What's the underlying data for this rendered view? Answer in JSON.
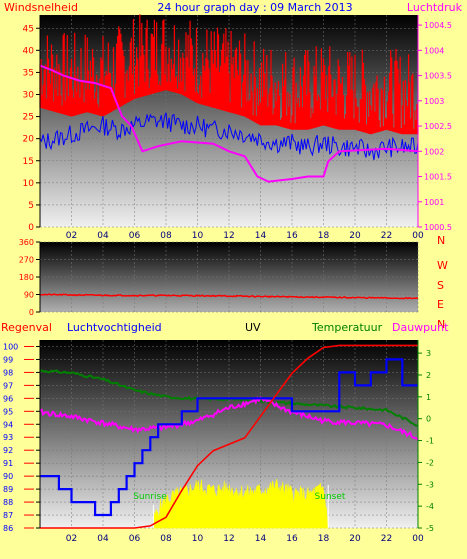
{
  "colors": {
    "background": "#ffff99",
    "wind": "#ff0000",
    "gust": "#0000ff",
    "pressure": "#ff00ff",
    "direction": "#ff0000",
    "rain": "#ff0000",
    "humidity": "#0000ff",
    "uv": "#ffff00",
    "temperature": "#008000",
    "dewpoint": "#ff00ff",
    "sun_labels": "#00cc00"
  },
  "chart_data": [
    {
      "type": "line",
      "title": "24 hour graph day : 09 March 2013",
      "left_label": "Windsnelheid",
      "right_label": "Luchtdruk",
      "x_ticks": [
        "02",
        "04",
        "06",
        "08",
        "10",
        "12",
        "14",
        "16",
        "18",
        "20",
        "22",
        "00"
      ],
      "y_ticks_left": [
        "0",
        "5",
        "10",
        "15",
        "20",
        "25",
        "30",
        "35",
        "40",
        "45"
      ],
      "y_ticks_right": [
        "1000.5",
        "1001",
        "1001.5",
        "1002",
        "1002.5",
        "1003",
        "1003.5",
        "1004",
        "1004.5"
      ],
      "xlim": [
        0,
        24
      ],
      "ylim_left": [
        0,
        48
      ],
      "ylim_right": [
        1000.5,
        1004.7
      ],
      "series": [
        {
          "name": "Windsnelheid",
          "axis": "left",
          "x": [
            0,
            1,
            2,
            3,
            4,
            5,
            6,
            7,
            8,
            9,
            10,
            11,
            12,
            13,
            14,
            15,
            16,
            17,
            18,
            19,
            20,
            21,
            22,
            23,
            24
          ],
          "y": [
            33,
            32,
            31,
            32,
            31,
            33,
            35,
            36,
            37,
            36,
            34,
            33,
            32,
            31,
            29,
            29,
            28,
            28,
            29,
            28,
            28,
            27,
            28,
            27,
            27
          ]
        },
        {
          "name": "Windstoten",
          "axis": "left",
          "x": [
            0,
            1,
            2,
            3,
            4,
            5,
            6,
            7,
            8,
            9,
            10,
            11,
            12,
            13,
            14,
            15,
            16,
            17,
            18,
            19,
            20,
            21,
            22,
            23,
            24
          ],
          "y": [
            19,
            20,
            21,
            22,
            23,
            22,
            23,
            24,
            24,
            23,
            23,
            22,
            22,
            21,
            20,
            19,
            19,
            18,
            19,
            18,
            18,
            17,
            18,
            18,
            18
          ]
        },
        {
          "name": "Luchtdruk",
          "axis": "right",
          "x": [
            0,
            0.8,
            1.5,
            2.5,
            3.5,
            4.5,
            5.2,
            5.8,
            6.5,
            7.5,
            9,
            11,
            12,
            13,
            13.8,
            14.5,
            16,
            17,
            18,
            18.3,
            19,
            22,
            24
          ],
          "y": [
            1003.7,
            1003.6,
            1003.5,
            1003.4,
            1003.35,
            1003.25,
            1002.7,
            1002.5,
            1002.0,
            1002.1,
            1002.2,
            1002.15,
            1002.0,
            1001.9,
            1001.5,
            1001.4,
            1001.45,
            1001.5,
            1001.5,
            1001.8,
            1002.0,
            1002.05,
            1002.0
          ]
        }
      ]
    },
    {
      "type": "line",
      "y_ticks_left": [
        "0",
        "90",
        "180",
        "270",
        "360"
      ],
      "compass_labels": [
        "N",
        "W",
        "S",
        "E",
        "N"
      ],
      "xlim": [
        0,
        24
      ],
      "ylim": [
        0,
        360
      ],
      "series": [
        {
          "name": "Windrichting",
          "x": [
            0,
            2,
            4,
            6,
            8,
            10,
            12,
            14,
            16,
            18,
            20,
            22,
            24
          ],
          "y": [
            90,
            88,
            86,
            85,
            85,
            84,
            82,
            80,
            78,
            76,
            74,
            72,
            70
          ]
        }
      ]
    },
    {
      "type": "line",
      "labels": [
        "Regenval",
        "Luchtvochtigheid",
        "UV",
        "Temperatuur",
        "Dauwpunt"
      ],
      "sun_labels": [
        "Sunrise",
        "Sunset"
      ],
      "sunrise_hour": 7.2,
      "sunset_hour": 18.3,
      "x_ticks": [
        "02",
        "04",
        "06",
        "08",
        "10",
        "12",
        "14",
        "16",
        "18",
        "20",
        "22",
        "00"
      ],
      "y_ticks_humidity": [
        "86",
        "87",
        "88",
        "89",
        "90",
        "91",
        "92",
        "93",
        "94",
        "95",
        "96",
        "97",
        "98",
        "99",
        "100"
      ],
      "y_ticks_temperature": [
        "-5",
        "-4",
        "-3",
        "-2",
        "-1",
        "0",
        "1",
        "2",
        "3"
      ],
      "xlim": [
        0,
        24
      ],
      "ylim_humidity": [
        86,
        100.5
      ],
      "ylim_temperature": [
        -5,
        3.6
      ],
      "series": [
        {
          "name": "Luchtvochtigheid",
          "axis": "humidity",
          "step": true,
          "x": [
            0,
            1.2,
            2,
            3,
            3.5,
            4,
            4.5,
            5,
            5.5,
            6,
            6.5,
            7,
            7.5,
            8,
            8.5,
            9,
            9.5,
            10,
            11,
            12,
            13,
            14,
            16,
            18,
            19,
            20,
            21,
            22,
            23,
            24
          ],
          "y": [
            90,
            89,
            88,
            88,
            87,
            87,
            88,
            89,
            90,
            91,
            92,
            93,
            94,
            94,
            94,
            95,
            95,
            96,
            96,
            96,
            96,
            96,
            95,
            95,
            98,
            97,
            98,
            99,
            97,
            97
          ]
        },
        {
          "name": "Temperatuur",
          "axis": "temperature",
          "x": [
            0,
            2,
            4,
            6,
            8,
            10,
            12,
            14,
            16,
            18,
            20,
            22,
            24
          ],
          "y": [
            2.2,
            2.1,
            1.8,
            1.3,
            1.0,
            0.9,
            0.9,
            0.8,
            0.7,
            0.6,
            0.5,
            0.4,
            -0.3
          ]
        },
        {
          "name": "Dauwpunt",
          "axis": "temperature",
          "x": [
            0,
            2,
            4,
            6,
            8,
            10,
            12,
            14,
            16,
            18,
            20,
            22,
            24
          ],
          "y": [
            0.3,
            0.1,
            -0.2,
            -0.5,
            -0.4,
            -0.1,
            0.5,
            0.9,
            0.3,
            -0.1,
            -0.2,
            -0.3,
            -0.9
          ]
        },
        {
          "name": "Regenval",
          "axis": "rain",
          "x": [
            0,
            6,
            7,
            7.5,
            8,
            9,
            10,
            11,
            12,
            13,
            14,
            16,
            17,
            18,
            19,
            24
          ],
          "y": [
            0,
            0,
            0.2,
            0.6,
            1.0,
            3.5,
            5.8,
            7.2,
            7.8,
            8.4,
            10.4,
            14.4,
            15.8,
            16.8,
            17.0,
            17.0
          ],
          "ymax": 17.5
        },
        {
          "name": "UV",
          "axis": "uv",
          "x": [
            7.2,
            7.5,
            8,
            9,
            10,
            11,
            12,
            13,
            14,
            15,
            16,
            17,
            18,
            18.3
          ],
          "y": [
            0.3,
            0.8,
            1.2,
            1.5,
            1.8,
            1.6,
            1.7,
            1.5,
            1.6,
            1.8,
            1.5,
            1.4,
            1.7,
            0.2
          ],
          "ymax": 8
        }
      ]
    }
  ]
}
